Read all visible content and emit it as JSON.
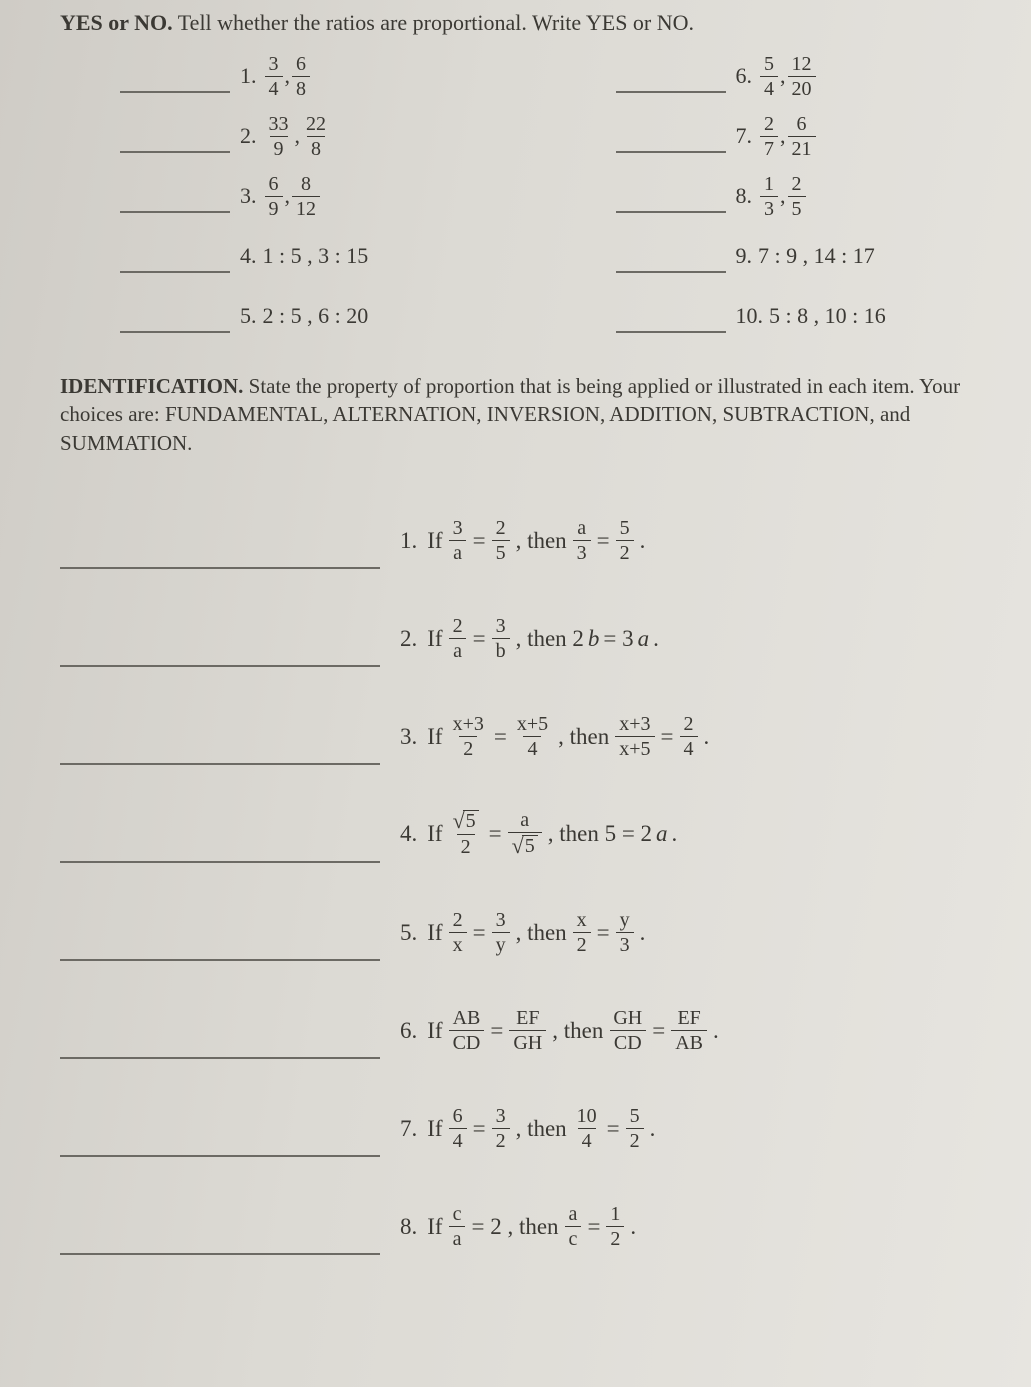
{
  "colors": {
    "text": "#3b3934",
    "line": "#6c6a64",
    "bg_left": "#cfccc6",
    "bg_right": "#e7e5e0"
  },
  "typography": {
    "font_family": "Times New Roman",
    "base_size_pt": 16
  },
  "section1": {
    "lead": "YES or NO.",
    "instruction": " Tell whether the ratios are proportional. Write YES or NO.",
    "items": [
      {
        "n": "1.",
        "parts": [
          {
            "t": "frac",
            "n": "3",
            "d": "4"
          },
          {
            "t": "text",
            "v": " , "
          },
          {
            "t": "frac",
            "n": "6",
            "d": "8"
          }
        ]
      },
      {
        "n": "2.",
        "parts": [
          {
            "t": "frac",
            "n": "33",
            "d": "9"
          },
          {
            "t": "text",
            "v": " , "
          },
          {
            "t": "frac",
            "n": "22",
            "d": "8"
          }
        ]
      },
      {
        "n": "3.",
        "parts": [
          {
            "t": "frac",
            "n": "6",
            "d": "9"
          },
          {
            "t": "text",
            "v": " , "
          },
          {
            "t": "frac",
            "n": "8",
            "d": "12"
          }
        ]
      },
      {
        "n": "4.",
        "parts": [
          {
            "t": "text",
            "v": "1 : 5 , 3 : 15"
          }
        ]
      },
      {
        "n": "5.",
        "parts": [
          {
            "t": "text",
            "v": "2 : 5 , 6 : 20"
          }
        ]
      },
      {
        "n": "6.",
        "parts": [
          {
            "t": "frac",
            "n": "5",
            "d": "4"
          },
          {
            "t": "text",
            "v": " , "
          },
          {
            "t": "frac",
            "n": "12",
            "d": "20"
          }
        ]
      },
      {
        "n": "7.",
        "parts": [
          {
            "t": "frac",
            "n": "2",
            "d": "7"
          },
          {
            "t": "text",
            "v": " , "
          },
          {
            "t": "frac",
            "n": "6",
            "d": "21"
          }
        ]
      },
      {
        "n": "8.",
        "parts": [
          {
            "t": "frac",
            "n": "1",
            "d": "3"
          },
          {
            "t": "text",
            "v": " , "
          },
          {
            "t": "frac",
            "n": "2",
            "d": "5"
          }
        ]
      },
      {
        "n": "9.",
        "parts": [
          {
            "t": "text",
            "v": "7 : 9 , 14 : 17"
          }
        ]
      },
      {
        "n": "10.",
        "parts": [
          {
            "t": "text",
            "v": "5 : 8 , 10 : 16"
          }
        ]
      }
    ]
  },
  "section2": {
    "title": "IDENTIFICATION.",
    "instruction": " State the property of proportion that is being applied or illustrated in each item. Your choices are: FUNDAMENTAL, ALTERNATION, INVERSION, ADDITION, SUBTRACTION, and SUMMATION.",
    "items": [
      {
        "n": "1.",
        "parts": [
          {
            "t": "text",
            "v": "If "
          },
          {
            "t": "frac",
            "n": "3",
            "d": "a"
          },
          {
            "t": "text",
            "v": " = "
          },
          {
            "t": "frac",
            "n": "2",
            "d": "5"
          },
          {
            "t": "text",
            "v": " , then "
          },
          {
            "t": "frac",
            "n": "a",
            "d": "3"
          },
          {
            "t": "text",
            "v": " = "
          },
          {
            "t": "frac",
            "n": "5",
            "d": "2"
          },
          {
            "t": "text",
            "v": " ."
          }
        ]
      },
      {
        "n": "2.",
        "parts": [
          {
            "t": "text",
            "v": "If "
          },
          {
            "t": "frac",
            "n": "2",
            "d": "a"
          },
          {
            "t": "text",
            "v": " = "
          },
          {
            "t": "frac",
            "n": "3",
            "d": "b"
          },
          {
            "t": "text",
            "v": " , then 2"
          },
          {
            "t": "ital",
            "v": "b"
          },
          {
            "t": "text",
            "v": " = 3"
          },
          {
            "t": "ital",
            "v": "a"
          },
          {
            "t": "text",
            "v": " ."
          }
        ]
      },
      {
        "n": "3.",
        "parts": [
          {
            "t": "text",
            "v": "If "
          },
          {
            "t": "frac",
            "n": "x+3",
            "d": "2"
          },
          {
            "t": "text",
            "v": " = "
          },
          {
            "t": "frac",
            "n": "x+5",
            "d": "4"
          },
          {
            "t": "text",
            "v": " , then "
          },
          {
            "t": "frac",
            "n": "x+3",
            "d": "x+5"
          },
          {
            "t": "text",
            "v": " = "
          },
          {
            "t": "frac",
            "n": "2",
            "d": "4"
          },
          {
            "t": "text",
            "v": " ."
          }
        ]
      },
      {
        "n": "4.",
        "parts": [
          {
            "t": "text",
            "v": "If "
          },
          {
            "t": "fracx",
            "num": [
              {
                "t": "sqrt",
                "v": "5"
              }
            ],
            "den": [
              {
                "t": "text",
                "v": "2"
              }
            ]
          },
          {
            "t": "text",
            "v": " = "
          },
          {
            "t": "fracx",
            "num": [
              {
                "t": "text",
                "v": "a"
              }
            ],
            "den": [
              {
                "t": "sqrt",
                "v": "5"
              }
            ]
          },
          {
            "t": "text",
            "v": " , then 5 = 2"
          },
          {
            "t": "ital",
            "v": "a"
          },
          {
            "t": "text",
            "v": " ."
          }
        ]
      },
      {
        "n": "5.",
        "parts": [
          {
            "t": "text",
            "v": "If "
          },
          {
            "t": "frac",
            "n": "2",
            "d": "x"
          },
          {
            "t": "text",
            "v": " = "
          },
          {
            "t": "frac",
            "n": "3",
            "d": "y"
          },
          {
            "t": "text",
            "v": " , then "
          },
          {
            "t": "frac",
            "n": "x",
            "d": "2"
          },
          {
            "t": "text",
            "v": " = "
          },
          {
            "t": "frac",
            "n": "y",
            "d": "3"
          },
          {
            "t": "text",
            "v": " ."
          }
        ]
      },
      {
        "n": "6.",
        "parts": [
          {
            "t": "text",
            "v": "If "
          },
          {
            "t": "frac",
            "n": "AB",
            "d": "CD"
          },
          {
            "t": "text",
            "v": " = "
          },
          {
            "t": "frac",
            "n": "EF",
            "d": "GH"
          },
          {
            "t": "text",
            "v": " , then "
          },
          {
            "t": "frac",
            "n": "GH",
            "d": "CD"
          },
          {
            "t": "text",
            "v": " = "
          },
          {
            "t": "frac",
            "n": "EF",
            "d": "AB"
          },
          {
            "t": "text",
            "v": " ."
          }
        ]
      },
      {
        "n": "7.",
        "parts": [
          {
            "t": "text",
            "v": "If "
          },
          {
            "t": "frac",
            "n": "6",
            "d": "4"
          },
          {
            "t": "text",
            "v": " = "
          },
          {
            "t": "frac",
            "n": "3",
            "d": "2"
          },
          {
            "t": "text",
            "v": " , then "
          },
          {
            "t": "frac",
            "n": "10",
            "d": "4"
          },
          {
            "t": "text",
            "v": " = "
          },
          {
            "t": "frac",
            "n": "5",
            "d": "2"
          },
          {
            "t": "text",
            "v": " ."
          }
        ]
      },
      {
        "n": "8.",
        "parts": [
          {
            "t": "text",
            "v": "If "
          },
          {
            "t": "frac",
            "n": "c",
            "d": "a"
          },
          {
            "t": "text",
            "v": " = 2 , then "
          },
          {
            "t": "frac",
            "n": "a",
            "d": "c"
          },
          {
            "t": "text",
            "v": " = "
          },
          {
            "t": "frac",
            "n": "1",
            "d": "2"
          },
          {
            "t": "text",
            "v": " ."
          }
        ]
      }
    ]
  }
}
